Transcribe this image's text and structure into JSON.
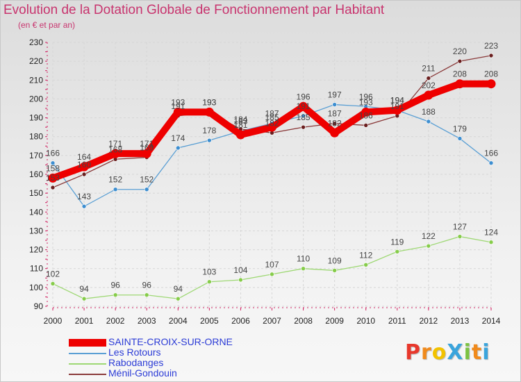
{
  "header": {
    "title": "Evolution de la Dotation Globale de Fonctionnement par Habitant",
    "subtitle": "(en € et par an)"
  },
  "logo": {
    "text": "ProXiti",
    "colors": [
      "#e8382c",
      "#f08a1c",
      "#f2c200",
      "#3aa4dc",
      "#7cc242",
      "#f08a1c",
      "#3aa4dc"
    ]
  },
  "chart_data": {
    "type": "line",
    "title": "Evolution de la Dotation Globale de Fonctionnement par Habitant",
    "subtitle": "(en € et par an)",
    "xlabel": "",
    "ylabel": "",
    "ylim": [
      90,
      230
    ],
    "yticks": [
      90,
      100,
      110,
      120,
      130,
      140,
      150,
      160,
      170,
      180,
      190,
      200,
      210,
      220,
      230
    ],
    "grid": true,
    "legend_position": "bottom-left",
    "x": [
      2000,
      2001,
      2002,
      2003,
      2004,
      2005,
      2006,
      2007,
      2008,
      2009,
      2010,
      2011,
      2012,
      2013,
      2014
    ],
    "series": [
      {
        "name": "SAINTE-CROIX-SUR-ORNE",
        "color": "#ee0000",
        "marker_color": "#ee0000",
        "values": [
          158,
          164,
          171,
          171,
          193,
          193,
          181,
          185,
          196,
          182,
          193,
          194,
          202,
          208,
          208
        ],
        "labels": [
          "158",
          "164",
          "171",
          "171",
          "193",
          "193",
          "181",
          "185",
          "196",
          "182",
          "193",
          "194",
          "202",
          "208",
          "208"
        ],
        "emphasis": true
      },
      {
        "name": "Les Rotours",
        "color": "#5a9fd4",
        "marker_color": "#3d8ed0",
        "values": [
          166,
          143,
          152,
          152,
          174,
          178,
          183,
          187,
          191,
          197,
          196,
          194,
          188,
          179,
          166
        ],
        "labels": [
          "166",
          "143",
          "152",
          "152",
          "174",
          "178",
          "183",
          "187",
          "191",
          "197",
          "196",
          "194",
          "188",
          "179",
          "166"
        ]
      },
      {
        "name": "Rabodanges",
        "color": "#9ed874",
        "marker_color": "#86cc4a",
        "values": [
          102,
          94,
          96,
          96,
          94,
          103,
          104,
          107,
          110,
          109,
          112,
          119,
          122,
          127,
          124
        ],
        "labels": [
          "102",
          "94",
          "96",
          "96",
          "94",
          "103",
          "104",
          "107",
          "110",
          "109",
          "112",
          "119",
          "122",
          "127",
          "124"
        ]
      },
      {
        "name": "Ménil-Gondouin",
        "color": "#8a3a3a",
        "marker_color": "#6a1f1f",
        "values": [
          153,
          160,
          168,
          169,
          191,
          193,
          184,
          182,
          185,
          187,
          186,
          191,
          211,
          220,
          223
        ],
        "labels": [
          "153",
          "160",
          "168",
          "169",
          "191",
          "193",
          "184",
          "182",
          "185",
          "187",
          "186",
          "191",
          "211",
          "220",
          "223"
        ]
      }
    ]
  }
}
